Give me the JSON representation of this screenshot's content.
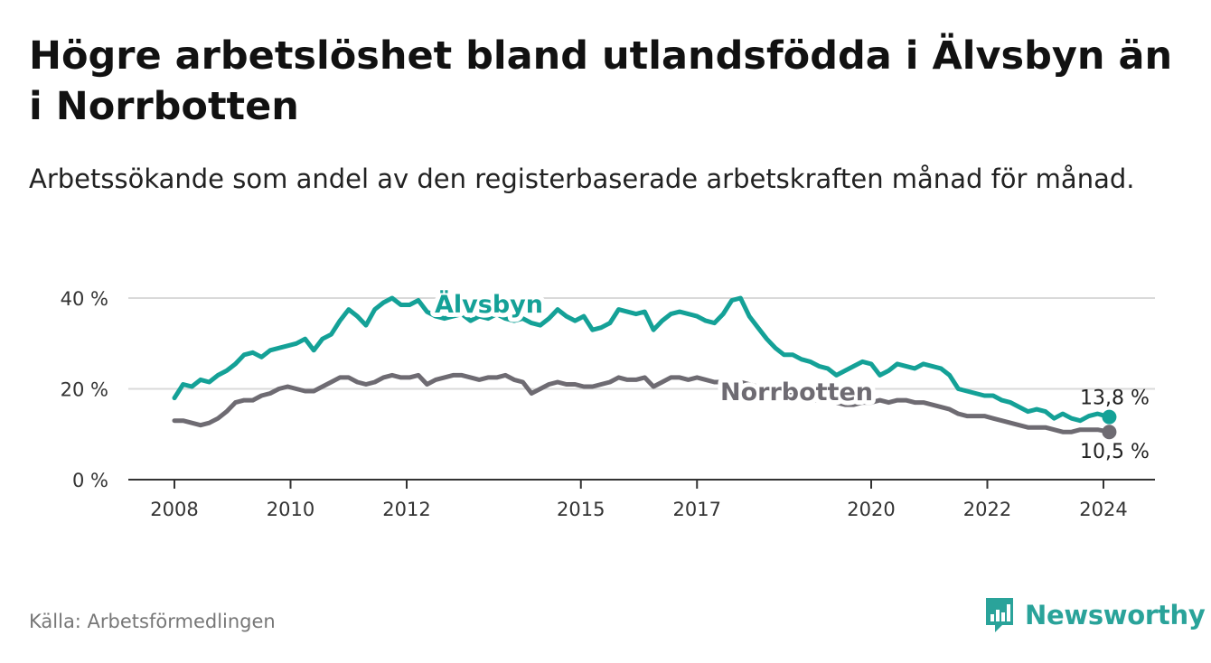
{
  "title": "Högre arbetslöshet bland utlandsfödda i Älvsbyn än i Norrbotten",
  "subtitle": "Arbetssökande som andel av den registerbaserade arbetskraften månad för månad.",
  "source": "Källa: Arbetsförmedlingen",
  "brand": {
    "name": "Newsworthy",
    "icon": "newsworthy-logo-icon",
    "color": "#2aa39a"
  },
  "colors": {
    "alvsbyn": "#14a197",
    "norrbotten": "#6e6b72",
    "grid": "#d9d9d9",
    "axis": "#333333"
  },
  "chart_data": {
    "type": "line",
    "title": "Högre arbetslöshet bland utlandsfödda i Älvsbyn än i Norrbotten",
    "xlabel": "",
    "ylabel": "",
    "xlim": [
      2007.6,
      2025.0
    ],
    "ylim": [
      0,
      40
    ],
    "grid": true,
    "x_ticks": [
      {
        "value": 2008,
        "label": "2008"
      },
      {
        "value": 2010,
        "label": "2010"
      },
      {
        "value": 2012,
        "label": "2012"
      },
      {
        "value": 2015,
        "label": "2015"
      },
      {
        "value": 2017,
        "label": "2017"
      },
      {
        "value": 2020,
        "label": "2020"
      },
      {
        "value": 2022,
        "label": "2022"
      },
      {
        "value": 2024,
        "label": "2024"
      }
    ],
    "y_ticks": [
      {
        "value": 0,
        "label": "0 %"
      },
      {
        "value": 20,
        "label": "20 %"
      },
      {
        "value": 40,
        "label": "40 %"
      }
    ],
    "series": [
      {
        "name": "Älvsbyn",
        "label": "Älvsbyn",
        "end_label": "13,8 %",
        "x": [
          2008.0,
          2008.15,
          2008.3,
          2008.45,
          2008.6,
          2008.75,
          2008.9,
          2009.05,
          2009.2,
          2009.35,
          2009.5,
          2009.65,
          2009.8,
          2009.95,
          2010.1,
          2010.25,
          2010.4,
          2010.55,
          2010.7,
          2010.85,
          2011.0,
          2011.15,
          2011.3,
          2011.45,
          2011.6,
          2011.75,
          2011.9,
          2012.05,
          2012.2,
          2012.35,
          2012.5,
          2012.65,
          2012.8,
          2012.95,
          2013.1,
          2013.25,
          2013.4,
          2013.55,
          2013.7,
          2013.85,
          2014.0,
          2014.15,
          2014.3,
          2014.45,
          2014.6,
          2014.75,
          2014.9,
          2015.05,
          2015.2,
          2015.35,
          2015.5,
          2015.65,
          2015.8,
          2015.95,
          2016.1,
          2016.25,
          2016.4,
          2016.55,
          2016.7,
          2016.85,
          2017.0,
          2017.15,
          2017.3,
          2017.45,
          2017.6,
          2017.75,
          2017.9,
          2018.05,
          2018.2,
          2018.35,
          2018.5,
          2018.65,
          2018.8,
          2018.95,
          2019.1,
          2019.25,
          2019.4,
          2019.55,
          2019.7,
          2019.85,
          2020.0,
          2020.15,
          2020.3,
          2020.45,
          2020.6,
          2020.75,
          2020.9,
          2021.05,
          2021.2,
          2021.35,
          2021.5,
          2021.65,
          2021.8,
          2021.95,
          2022.1,
          2022.25,
          2022.4,
          2022.55,
          2022.7,
          2022.85,
          2023.0,
          2023.15,
          2023.3,
          2023.45,
          2023.6,
          2023.75,
          2023.9,
          2024.1
        ],
        "values": [
          18.0,
          21.0,
          20.5,
          22.0,
          21.5,
          23.0,
          24.0,
          25.5,
          27.5,
          28.0,
          27.0,
          28.5,
          29.0,
          29.5,
          30.0,
          31.0,
          28.5,
          31.0,
          32.0,
          35.0,
          37.5,
          36.0,
          34.0,
          37.5,
          39.0,
          40.0,
          38.5,
          38.5,
          39.5,
          37.0,
          36.0,
          35.5,
          36.0,
          36.5,
          35.0,
          36.0,
          35.5,
          36.5,
          35.5,
          35.0,
          35.5,
          34.5,
          34.0,
          35.5,
          37.5,
          36.0,
          35.0,
          36.0,
          33.0,
          33.5,
          34.5,
          37.5,
          37.0,
          36.5,
          37.0,
          33.0,
          35.0,
          36.5,
          37.0,
          36.5,
          36.0,
          35.0,
          34.5,
          36.5,
          39.5,
          40.0,
          36.0,
          33.5,
          31.0,
          29.0,
          27.5,
          27.5,
          26.5,
          26.0,
          25.0,
          24.5,
          23.0,
          24.0,
          25.0,
          26.0,
          25.5,
          23.0,
          24.0,
          25.5,
          25.0,
          24.5,
          25.5,
          25.0,
          24.5,
          23.0,
          20.0,
          19.5,
          19.0,
          18.5,
          18.5,
          17.5,
          17.0,
          16.0,
          15.0,
          15.5,
          15.0,
          13.5,
          14.5,
          13.5,
          13.0,
          14.0,
          14.5,
          13.8
        ]
      },
      {
        "name": "Norrbotten",
        "label": "Norrbotten",
        "end_label": "10,5 %",
        "x": [
          2008.0,
          2008.15,
          2008.3,
          2008.45,
          2008.6,
          2008.75,
          2008.9,
          2009.05,
          2009.2,
          2009.35,
          2009.5,
          2009.65,
          2009.8,
          2009.95,
          2010.1,
          2010.25,
          2010.4,
          2010.55,
          2010.7,
          2010.85,
          2011.0,
          2011.15,
          2011.3,
          2011.45,
          2011.6,
          2011.75,
          2011.9,
          2012.05,
          2012.2,
          2012.35,
          2012.5,
          2012.65,
          2012.8,
          2012.95,
          2013.1,
          2013.25,
          2013.4,
          2013.55,
          2013.7,
          2013.85,
          2014.0,
          2014.15,
          2014.3,
          2014.45,
          2014.6,
          2014.75,
          2014.9,
          2015.05,
          2015.2,
          2015.35,
          2015.5,
          2015.65,
          2015.8,
          2015.95,
          2016.1,
          2016.25,
          2016.4,
          2016.55,
          2016.7,
          2016.85,
          2017.0,
          2017.15,
          2017.3,
          2017.45,
          2017.6,
          2017.75,
          2017.9,
          2018.05,
          2018.2,
          2018.35,
          2018.5,
          2018.65,
          2018.8,
          2018.95,
          2019.1,
          2019.25,
          2019.4,
          2019.55,
          2019.7,
          2019.85,
          2020.0,
          2020.15,
          2020.3,
          2020.45,
          2020.6,
          2020.75,
          2020.9,
          2021.05,
          2021.2,
          2021.35,
          2021.5,
          2021.65,
          2021.8,
          2021.95,
          2022.1,
          2022.25,
          2022.4,
          2022.55,
          2022.7,
          2022.85,
          2023.0,
          2023.15,
          2023.3,
          2023.45,
          2023.6,
          2023.75,
          2023.9,
          2024.1
        ],
        "values": [
          13.0,
          13.0,
          12.5,
          12.0,
          12.5,
          13.5,
          15.0,
          17.0,
          17.5,
          17.5,
          18.5,
          19.0,
          20.0,
          20.5,
          20.0,
          19.5,
          19.5,
          20.5,
          21.5,
          22.5,
          22.5,
          21.5,
          21.0,
          21.5,
          22.5,
          23.0,
          22.5,
          22.5,
          23.0,
          21.0,
          22.0,
          22.5,
          23.0,
          23.0,
          22.5,
          22.0,
          22.5,
          22.5,
          23.0,
          22.0,
          21.5,
          19.0,
          20.0,
          21.0,
          21.5,
          21.0,
          21.0,
          20.5,
          20.5,
          21.0,
          21.5,
          22.5,
          22.0,
          22.0,
          22.5,
          20.5,
          21.5,
          22.5,
          22.5,
          22.0,
          22.5,
          22.0,
          21.5,
          21.5,
          21.5,
          21.5,
          21.0,
          20.5,
          20.0,
          19.5,
          19.5,
          18.5,
          18.0,
          17.5,
          17.5,
          17.5,
          17.0,
          16.5,
          16.5,
          17.0,
          17.0,
          17.5,
          17.0,
          17.5,
          17.5,
          17.0,
          17.0,
          16.5,
          16.0,
          15.5,
          14.5,
          14.0,
          14.0,
          14.0,
          13.5,
          13.0,
          12.5,
          12.0,
          11.5,
          11.5,
          11.5,
          11.0,
          10.5,
          10.5,
          11.0,
          11.0,
          11.0,
          10.5
        ]
      }
    ]
  }
}
